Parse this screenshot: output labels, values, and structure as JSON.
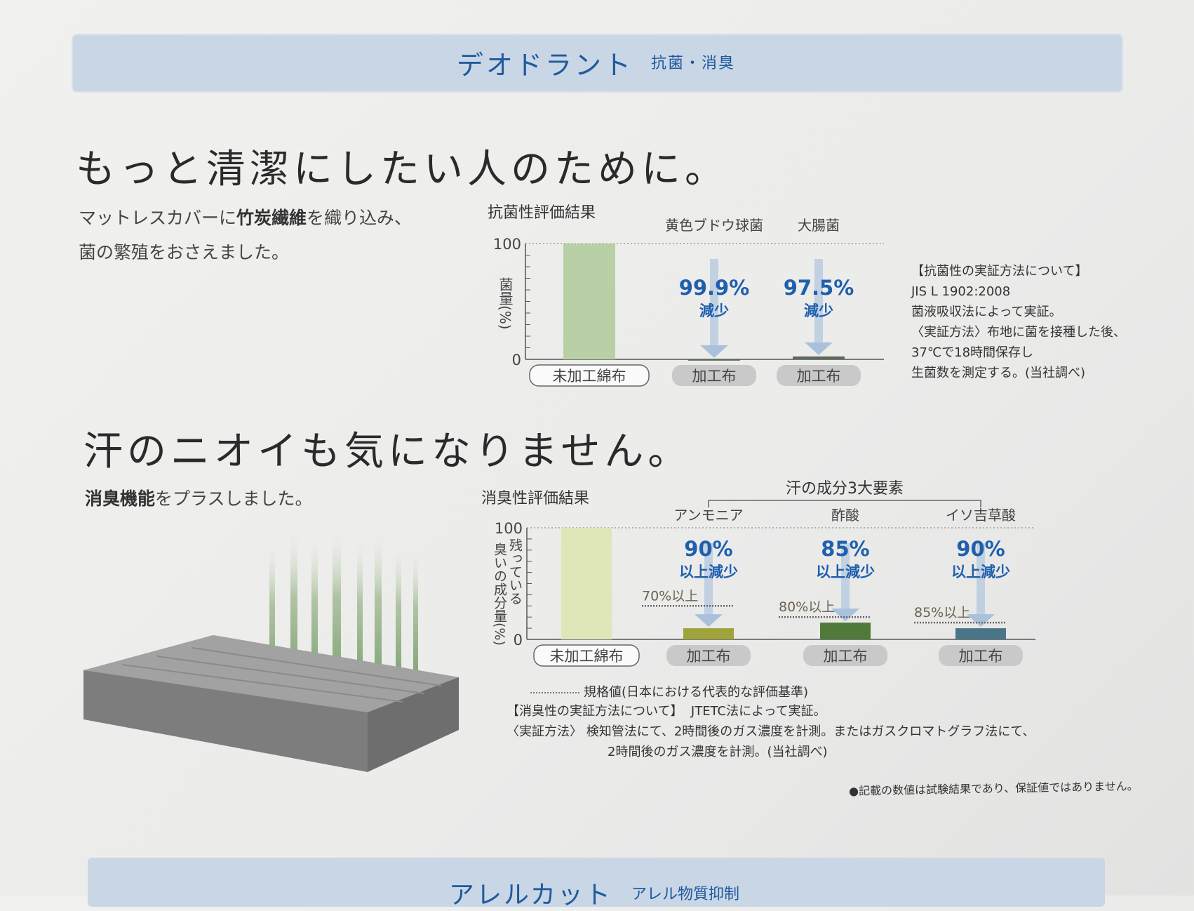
{
  "header": {
    "title": "デオドラント",
    "subtitle": "抗菌・消臭"
  },
  "section1": {
    "headline": "もっと清潔にしたい人のために。",
    "body_line1_a": "マットレスカバーに",
    "body_line1_b": "竹炭繊維",
    "body_line1_c": "を織り込み、",
    "body_line2": "菌の繁殖をおさえました。"
  },
  "section2": {
    "headline": "汗のニオイも気になりません。",
    "body_a": "消臭機能",
    "body_b": "をプラスしました。"
  },
  "antibacterial_note": {
    "lines": [
      "【抗菌性の実証方法について】",
      "JIS L 1902:2008",
      "菌液吸収法によって実証。",
      "〈実証方法〉布地に菌を接種した後、",
      "37℃で18時間保存し",
      "生菌数を測定する。(当社調べ)"
    ]
  },
  "deodorant_note": {
    "legend": "規格値(日本における代表的な評価基準)",
    "method_a": "【消臭性の実証方法について】",
    "method_b": "JTETC法によって実証。",
    "proc_label": "〈実証方法〉",
    "proc_line1": "検知管法にて、2時間後のガス濃度を計測。またはガスクロマトグラフ法にて、",
    "proc_line2": "2時間後のガス濃度を計測。(当社調べ)"
  },
  "disclaimer": "●記載の数値は試験結果であり、保証値ではありません。",
  "next_section": {
    "title": "アレルカット",
    "subtitle": "アレル物質抑制"
  },
  "chart_data": [
    {
      "type": "bar",
      "title": "抗菌性評価結果",
      "ylabel": "菌量(%)",
      "ylim": [
        0,
        100
      ],
      "yticks": [
        "100",
        "0"
      ],
      "categories": [
        "未加工綿布",
        "加工布",
        "加工布"
      ],
      "groups": [
        "",
        "黄色ブドウ球菌",
        "大腸菌"
      ],
      "values": [
        100,
        0.1,
        2.5
      ],
      "reduction_pct": [
        "",
        "99.9%",
        "97.5%"
      ],
      "reduction_label": "減少",
      "colors": [
        "#b9cfa6",
        "#5a6b5a",
        "#5a6b5a"
      ]
    },
    {
      "type": "bar",
      "title": "消臭性評価結果",
      "ylabel_a": "残っている",
      "ylabel_b": "臭いの成分量(%)",
      "ylim": [
        0,
        100
      ],
      "yticks": [
        "100",
        "0"
      ],
      "group_title": "汗の成分3大要素",
      "categories": [
        "未加工綿布",
        "加工布",
        "加工布",
        "加工布"
      ],
      "groups": [
        "",
        "アンモニア",
        "酢酸",
        "イソ吉草酸"
      ],
      "values": [
        100,
        10,
        15,
        10
      ],
      "reduction_pct": [
        "",
        "90%",
        "85%",
        "90%"
      ],
      "reduction_label": "以上減少",
      "standards": [
        null,
        30,
        20,
        15
      ],
      "standard_labels": [
        "",
        "70%以上",
        "80%以上",
        "85%以上"
      ],
      "colors": [
        "#dfe6b8",
        "#9fa43a",
        "#4f7a3a",
        "#4a7488"
      ]
    }
  ]
}
